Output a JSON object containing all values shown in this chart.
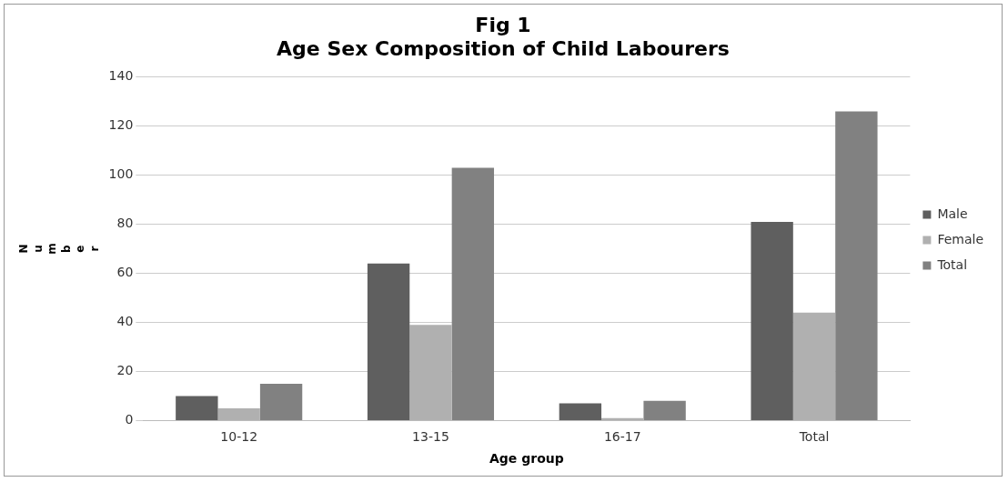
{
  "chart_data": {
    "type": "bar",
    "title": "Fig 1",
    "subtitle": "Age Sex Composition of Child Labourers",
    "xlabel": "Age group",
    "ylabel": "Number",
    "categories": [
      "10-12",
      "13-15",
      "16-17",
      "Total"
    ],
    "series": [
      {
        "name": "Male",
        "color": "#5f5f5f",
        "values": [
          10,
          64,
          7,
          81
        ]
      },
      {
        "name": "Female",
        "color": "#b0b0b0",
        "values": [
          5,
          39,
          1,
          44
        ]
      },
      {
        "name": "Total",
        "color": "#818181",
        "values": [
          15,
          103,
          8,
          126
        ]
      }
    ],
    "ylim": [
      0,
      140
    ],
    "yticks": [
      0,
      20,
      40,
      60,
      80,
      100,
      120,
      140
    ],
    "grid": "y",
    "legend": "right"
  }
}
